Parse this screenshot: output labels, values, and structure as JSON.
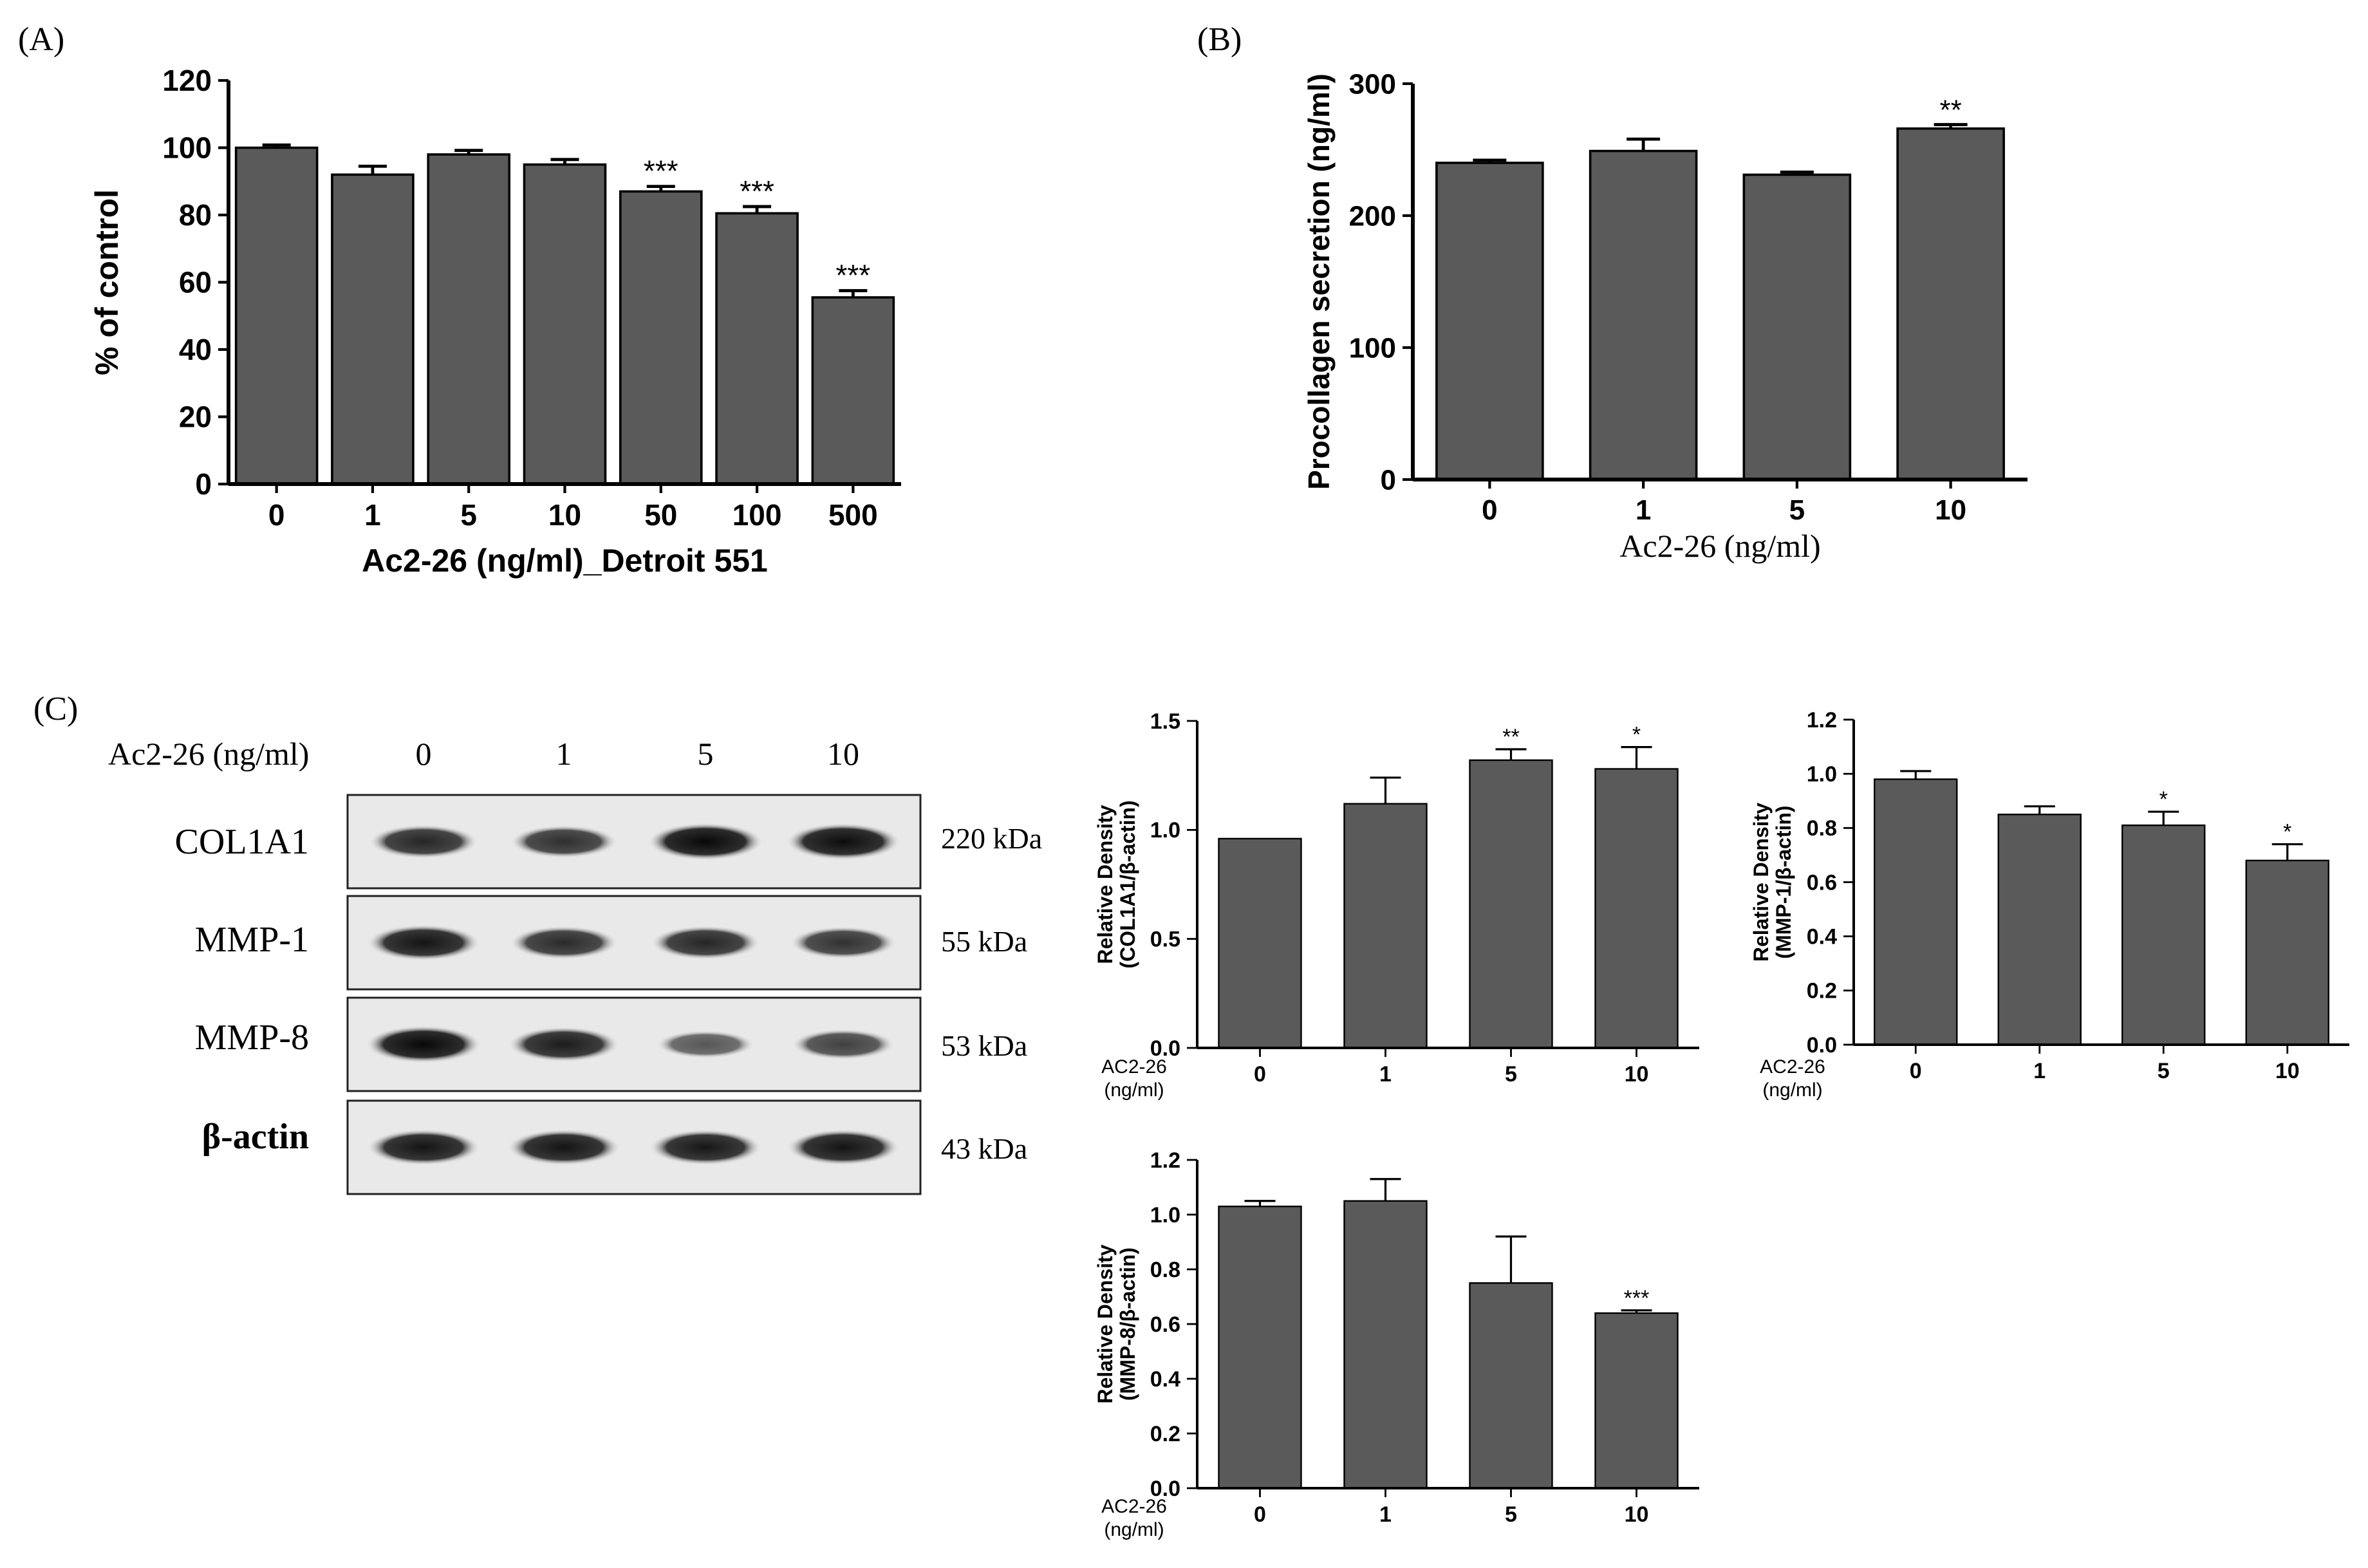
{
  "panels": {
    "A": "(A)",
    "B": "(B)",
    "C": "(C)"
  },
  "colors": {
    "bar": "#5a5a5a",
    "axis": "#000000",
    "background": "#ffffff"
  },
  "blot": {
    "header_label": "Ac2-26 (ng/ml)",
    "doses": [
      "0",
      "1",
      "5",
      "10"
    ],
    "rows": [
      {
        "protein": "COL1A1",
        "size": "220 kDa",
        "intensity": [
          0.78,
          0.72,
          0.98,
          0.95
        ]
      },
      {
        "protein": "MMP-1",
        "size": "55 kDa",
        "intensity": [
          0.9,
          0.75,
          0.78,
          0.7
        ]
      },
      {
        "protein": "MMP-8",
        "size": "53 kDa",
        "intensity": [
          0.98,
          0.85,
          0.45,
          0.6
        ]
      },
      {
        "protein": "β-actin",
        "size": "43 kDa",
        "intensity": [
          0.9,
          0.9,
          0.88,
          0.9
        ]
      }
    ]
  },
  "chart_data": [
    {
      "id": "A",
      "type": "bar",
      "title": "",
      "xlabel": "Ac2-26 (ng/ml)_Detroit 551",
      "ylabel": "% of control",
      "categories": [
        "0",
        "1",
        "5",
        "10",
        "50",
        "100",
        "500"
      ],
      "values": [
        100,
        92,
        98,
        95,
        87,
        80.5,
        55.5
      ],
      "errors": [
        0.8,
        2.5,
        1.2,
        1.5,
        1.5,
        2,
        2
      ],
      "annotations": [
        "",
        "",
        "",
        "",
        "***",
        "***",
        "***"
      ],
      "ylim": [
        0,
        120
      ],
      "yticks": [
        0,
        20,
        40,
        60,
        80,
        100,
        120
      ],
      "grid": false
    },
    {
      "id": "B",
      "type": "bar",
      "title": "",
      "xlabel": "Ac2-26  (ng/ml)",
      "ylabel": "Procollagen secretion (ng/ml)",
      "categories": [
        "0",
        "1",
        "5",
        "10"
      ],
      "values": [
        240,
        249,
        231,
        266
      ],
      "errors": [
        2,
        9,
        2,
        3
      ],
      "annotations": [
        "",
        "",
        "",
        "**"
      ],
      "ylim": [
        0,
        300
      ],
      "yticks": [
        0,
        100,
        200,
        300
      ],
      "grid": false
    },
    {
      "id": "C1",
      "type": "bar",
      "title": "",
      "xlabel": "",
      "ylabel": [
        "Relative Density",
        "(COL1A1/β-actin)"
      ],
      "x_caption": [
        "AC2-26",
        "(ng/ml)"
      ],
      "categories": [
        "0",
        "1",
        "5",
        "10"
      ],
      "values": [
        0.96,
        1.12,
        1.32,
        1.28
      ],
      "errors": [
        0,
        0.12,
        0.05,
        0.1
      ],
      "annotations": [
        "",
        "",
        "**",
        "*"
      ],
      "ylim": [
        0,
        1.5
      ],
      "yticks": [
        "0.0",
        "0.5",
        "1.0",
        "1.5"
      ],
      "grid": false
    },
    {
      "id": "C2",
      "type": "bar",
      "title": "",
      "xlabel": "",
      "ylabel": [
        "Relative Density",
        "(MMP-1/β-actin)"
      ],
      "x_caption": [
        "AC2-26",
        "(ng/ml)"
      ],
      "categories": [
        "0",
        "1",
        "5",
        "10"
      ],
      "values": [
        0.98,
        0.85,
        0.81,
        0.68
      ],
      "errors": [
        0.03,
        0.03,
        0.05,
        0.06
      ],
      "annotations": [
        "",
        "",
        "*",
        "*"
      ],
      "ylim": [
        0,
        1.2
      ],
      "yticks": [
        "0.0",
        "0.2",
        "0.4",
        "0.6",
        "0.8",
        "1.0",
        "1.2"
      ],
      "grid": false
    },
    {
      "id": "C3",
      "type": "bar",
      "title": "",
      "xlabel": "",
      "ylabel": [
        "Relative Density",
        "(MMP-8/β-actin)"
      ],
      "x_caption": [
        "AC2-26",
        "(ng/ml)"
      ],
      "categories": [
        "0",
        "1",
        "5",
        "10"
      ],
      "values": [
        1.03,
        1.05,
        0.75,
        0.64
      ],
      "errors": [
        0.02,
        0.08,
        0.17,
        0.01
      ],
      "annotations": [
        "",
        "",
        "",
        "***"
      ],
      "ylim": [
        0,
        1.2
      ],
      "yticks": [
        "0.0",
        "0.2",
        "0.4",
        "0.6",
        "0.8",
        "1.0",
        "1.2"
      ],
      "grid": false
    }
  ]
}
